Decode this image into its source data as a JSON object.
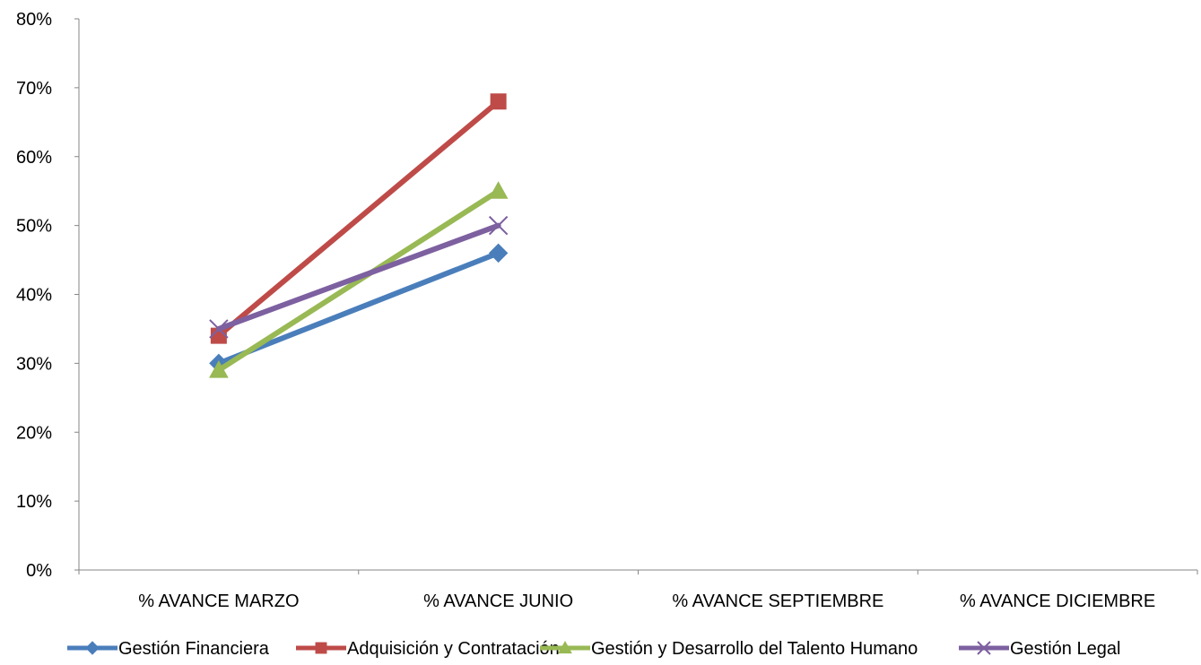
{
  "chart_data": {
    "type": "line",
    "title": "",
    "xlabel": "",
    "ylabel": "",
    "categories": [
      "% AVANCE MARZO",
      "% AVANCE JUNIO",
      "% AVANCE SEPTIEMBRE",
      "% AVANCE DICIEMBRE"
    ],
    "ylim": [
      0,
      0.8
    ],
    "yticks": [
      "0%",
      "10%",
      "20%",
      "30%",
      "40%",
      "50%",
      "60%",
      "70%",
      "80%"
    ],
    "grid": false,
    "legend_position": "bottom",
    "series": [
      {
        "name": "Gestión Financiera",
        "values": [
          0.3,
          0.46,
          null,
          null
        ],
        "color": "#4a7ebb",
        "marker": "diamond"
      },
      {
        "name": "Adquisición y Contratación",
        "values": [
          0.34,
          0.68,
          null,
          null
        ],
        "color": "#be4b48",
        "marker": "square"
      },
      {
        "name": "Gestión y Desarrollo del Talento Humano",
        "values": [
          0.29,
          0.55,
          null,
          null
        ],
        "color": "#98b954",
        "marker": "triangle"
      },
      {
        "name": "Gestión Legal",
        "values": [
          0.35,
          0.5,
          null,
          null
        ],
        "color": "#7d60a0",
        "marker": "x"
      }
    ]
  }
}
